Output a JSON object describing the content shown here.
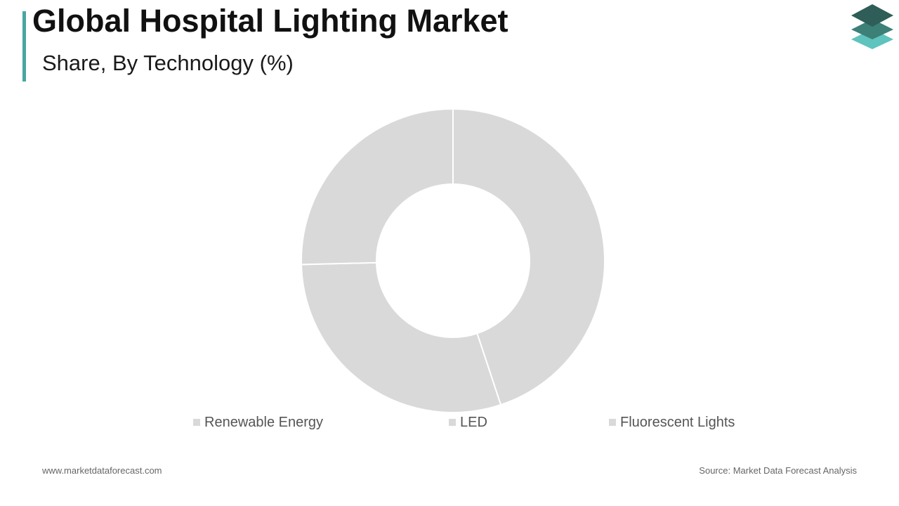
{
  "header": {
    "title": "Global Hospital Lighting Market",
    "subtitle": "Share, By Technology (%)"
  },
  "colors": {
    "accent": "#4aa6a2",
    "slice_fill": "#d9d9d9",
    "slice_border": "#ffffff",
    "legend_swatch": "#d9d9d9",
    "logo_dark": "#2f5d57",
    "logo_mid": "#3c8078",
    "logo_light": "#5fc3be"
  },
  "logo": {
    "icon": "stacked-layers-icon"
  },
  "chart_data": {
    "type": "pie",
    "style": "donut",
    "labels": [
      "Renewable Energy",
      "LED",
      "Fluorescent Lights"
    ],
    "values": [
      44.9,
      29.7,
      25.4
    ],
    "legend_position": "bottom",
    "title": "Share, By Technology (%)"
  },
  "footer": {
    "website": "www.marketdataforecast.com",
    "source": "Source: Market Data Forecast Analysis"
  }
}
